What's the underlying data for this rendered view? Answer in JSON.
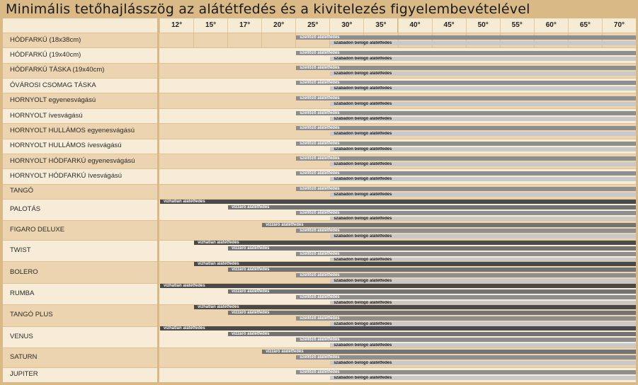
{
  "chart_data": {
    "type": "table",
    "title": "Minimális tetőhajlásszög az alátétfedés és a kivitelezés figyelembevételével",
    "columns": [
      "12°",
      "15°",
      "17°",
      "20°",
      "25°",
      "30°",
      "35°",
      "40°",
      "45°",
      "50°",
      "55°",
      "60°",
      "65°",
      "70°"
    ],
    "bar_types": {
      "vizhatlan": {
        "label": "vízhatlan alátétfedés",
        "color": "#4a4a4a"
      },
      "vizzaro": {
        "label": "vízzáró alátétfedés",
        "color": "#737373"
      },
      "szellozo": {
        "label": "szellőző alátétfedés",
        "color": "#8e8e8e"
      },
      "szabadon": {
        "label": "szabadon belógó alátétfedés",
        "color": "#c9c9c9"
      }
    },
    "rows": [
      {
        "name": "HÓDFARKÚ (18x38cm)",
        "bars": [
          {
            "type": "szellozo",
            "from": "25°"
          },
          {
            "type": "szabadon",
            "from": "30°"
          }
        ]
      },
      {
        "name": "HÓDFARKÚ (19x40cm)",
        "bars": [
          {
            "type": "szellozo",
            "from": "25°"
          },
          {
            "type": "szabadon",
            "from": "30°"
          }
        ]
      },
      {
        "name": "HÓDFARKÚ TÁSKA (19x40cm)",
        "bars": [
          {
            "type": "szellozo",
            "from": "25°"
          },
          {
            "type": "szabadon",
            "from": "30°"
          }
        ]
      },
      {
        "name": "ÓVÁROSI CSOMAG TÁSKA",
        "bars": [
          {
            "type": "szellozo",
            "from": "25°"
          },
          {
            "type": "szabadon",
            "from": "30°"
          }
        ]
      },
      {
        "name": "HORNYOLT egyenesvágású",
        "bars": [
          {
            "type": "szellozo",
            "from": "25°"
          },
          {
            "type": "szabadon",
            "from": "30°"
          }
        ]
      },
      {
        "name": "HORNYOLT ívesvágású",
        "bars": [
          {
            "type": "szellozo",
            "from": "25°"
          },
          {
            "type": "szabadon",
            "from": "30°"
          }
        ]
      },
      {
        "name": "HORNYOLT HULLÁMOS egyenesvágású",
        "bars": [
          {
            "type": "szellozo",
            "from": "25°"
          },
          {
            "type": "szabadon",
            "from": "30°"
          }
        ]
      },
      {
        "name": "HORNYOLT HULLÁMOS ívesvágású",
        "bars": [
          {
            "type": "szellozo",
            "from": "25°"
          },
          {
            "type": "szabadon",
            "from": "30°"
          }
        ]
      },
      {
        "name": "HORNYOLT HÓDFARKÚ egyenesvágású",
        "bars": [
          {
            "type": "szellozo",
            "from": "25°"
          },
          {
            "type": "szabadon",
            "from": "30°"
          }
        ]
      },
      {
        "name": "HORNYOLT HÓDFARKÚ ívesvágású",
        "bars": [
          {
            "type": "szellozo",
            "from": "25°"
          },
          {
            "type": "szabadon",
            "from": "30°"
          }
        ]
      },
      {
        "name": "TANGÓ",
        "bars": [
          {
            "type": "szellozo",
            "from": "25°"
          },
          {
            "type": "szabadon",
            "from": "30°"
          }
        ]
      },
      {
        "name": "PALOTÁS",
        "bars": [
          {
            "type": "vizhatlan",
            "from": "12°"
          },
          {
            "type": "vizzaro",
            "from": "17°"
          },
          {
            "type": "szellozo",
            "from": "25°"
          },
          {
            "type": "szabadon",
            "from": "30°"
          }
        ]
      },
      {
        "name": "FIGARO DELUXE",
        "bars": [
          {
            "type": "vizzaro",
            "from": "20°"
          },
          {
            "type": "szellozo",
            "from": "25°"
          },
          {
            "type": "szabadon",
            "from": "30°"
          }
        ]
      },
      {
        "name": "TWIST",
        "bars": [
          {
            "type": "vizhatlan",
            "from": "15°"
          },
          {
            "type": "vizzaro",
            "from": "17°"
          },
          {
            "type": "szellozo",
            "from": "25°"
          },
          {
            "type": "szabadon",
            "from": "30°"
          }
        ]
      },
      {
        "name": "BOLERO",
        "bars": [
          {
            "type": "vizhatlan",
            "from": "15°"
          },
          {
            "type": "vizzaro",
            "from": "17°"
          },
          {
            "type": "szellozo",
            "from": "25°"
          },
          {
            "type": "szabadon",
            "from": "30°"
          }
        ]
      },
      {
        "name": "RUMBA",
        "bars": [
          {
            "type": "vizhatlan",
            "from": "12°"
          },
          {
            "type": "vizzaro",
            "from": "17°"
          },
          {
            "type": "szellozo",
            "from": "25°"
          },
          {
            "type": "szabadon",
            "from": "30°"
          }
        ]
      },
      {
        "name": "TANGÓ PLUS",
        "bars": [
          {
            "type": "vizhatlan",
            "from": "15°"
          },
          {
            "type": "vizzaro",
            "from": "17°"
          },
          {
            "type": "szellozo",
            "from": "25°"
          },
          {
            "type": "szabadon",
            "from": "30°"
          }
        ]
      },
      {
        "name": "VENUS",
        "bars": [
          {
            "type": "vizhatlan",
            "from": "12°"
          },
          {
            "type": "vizzaro",
            "from": "17°"
          },
          {
            "type": "szellozo",
            "from": "25°"
          },
          {
            "type": "szabadon",
            "from": "30°"
          }
        ]
      },
      {
        "name": "SATURN",
        "bars": [
          {
            "type": "vizzaro",
            "from": "20°"
          },
          {
            "type": "szellozo",
            "from": "25°"
          },
          {
            "type": "szabadon",
            "from": "30°"
          }
        ]
      },
      {
        "name": "JUPITER",
        "bars": [
          {
            "type": "szellozo",
            "from": "25°"
          },
          {
            "type": "szabadon",
            "from": "30°"
          }
        ]
      }
    ]
  }
}
